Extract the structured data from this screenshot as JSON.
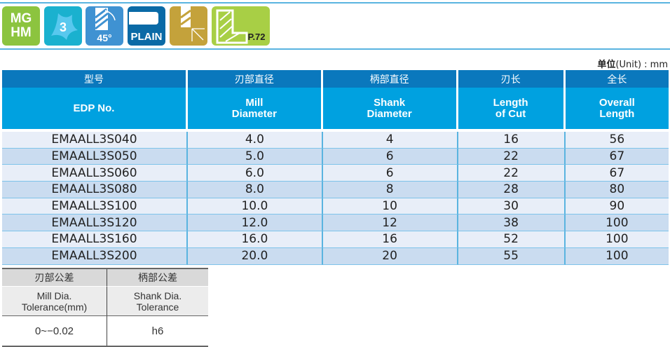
{
  "icons": [
    {
      "name": "material-mg-hm",
      "text": "MG\nHM",
      "color": "#8cc43f"
    },
    {
      "name": "flutes-3",
      "text": "3",
      "color": "#1ab1cf"
    },
    {
      "name": "helix-45",
      "text": "45°",
      "color": "#3f92d2"
    },
    {
      "name": "plain-shank",
      "text": "PLAIN",
      "color": "#0a6aa6"
    },
    {
      "name": "cutting-direction",
      "text": "",
      "color": "#c4a23b"
    },
    {
      "name": "page-ref",
      "text": "P.72",
      "color": "#a8cf45"
    }
  ],
  "unit": {
    "cn": "单位",
    "en": "(Unit) : mm"
  },
  "main_table": {
    "headers_cn": [
      "型号",
      "刃部直径",
      "柄部直径",
      "刃长",
      "全长"
    ],
    "headers_en": [
      [
        "EDP No."
      ],
      [
        "Mill",
        "Diameter"
      ],
      [
        "Shank",
        "Diameter"
      ],
      [
        "Length",
        "of Cut"
      ],
      [
        "Overall",
        "Length"
      ]
    ],
    "rows": [
      [
        "EMAALL3S040",
        "4.0",
        "4",
        "16",
        "56"
      ],
      [
        "EMAALL3S050",
        "5.0",
        "6",
        "22",
        "67"
      ],
      [
        "EMAALL3S060",
        "6.0",
        "6",
        "22",
        "67"
      ],
      [
        "EMAALL3S080",
        "8.0",
        "8",
        "28",
        "80"
      ],
      [
        "EMAALL3S100",
        "10.0",
        "10",
        "30",
        "90"
      ],
      [
        "EMAALL3S120",
        "12.0",
        "12",
        "38",
        "100"
      ],
      [
        "EMAALL3S160",
        "16.0",
        "16",
        "52",
        "100"
      ],
      [
        "EMAALL3S200",
        "20.0",
        "20",
        "55",
        "100"
      ]
    ]
  },
  "tolerance_table": {
    "headers_cn": [
      "刃部公差",
      "柄部公差"
    ],
    "headers_en": [
      [
        "Mill Dia.",
        "Tolerance(mm)"
      ],
      [
        "Shank Dia.",
        "Tolerance"
      ]
    ],
    "values": [
      "0~−0.02",
      "h6"
    ]
  }
}
